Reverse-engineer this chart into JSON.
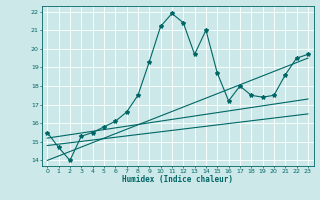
{
  "xlabel": "Humidex (Indice chaleur)",
  "bg_color": "#cce8e8",
  "grid_color": "#aacccc",
  "line_color": "#006666",
  "xlim": [
    -0.5,
    23.5
  ],
  "ylim": [
    13.7,
    22.3
  ],
  "xticks": [
    0,
    1,
    2,
    3,
    4,
    5,
    6,
    7,
    8,
    9,
    10,
    11,
    12,
    13,
    14,
    15,
    16,
    17,
    18,
    19,
    20,
    21,
    22,
    23
  ],
  "yticks": [
    14,
    15,
    16,
    17,
    18,
    19,
    20,
    21,
    22
  ],
  "main_x": [
    0,
    1,
    2,
    3,
    4,
    5,
    6,
    7,
    8,
    9,
    10,
    11,
    12,
    13,
    14,
    15,
    16,
    17,
    18,
    19,
    20,
    21,
    22,
    23
  ],
  "main_y": [
    15.5,
    14.7,
    14.0,
    15.3,
    15.5,
    15.8,
    16.1,
    16.6,
    17.5,
    19.3,
    21.2,
    21.9,
    21.4,
    19.7,
    21.0,
    18.7,
    17.2,
    18.0,
    17.5,
    17.4,
    17.5,
    18.6,
    19.5,
    19.7
  ],
  "line1_x": [
    0,
    23
  ],
  "line1_y": [
    14.0,
    19.5
  ],
  "line2_x": [
    0,
    23
  ],
  "line2_y": [
    15.2,
    17.3
  ],
  "line3_x": [
    0,
    23
  ],
  "line3_y": [
    14.8,
    16.5
  ]
}
